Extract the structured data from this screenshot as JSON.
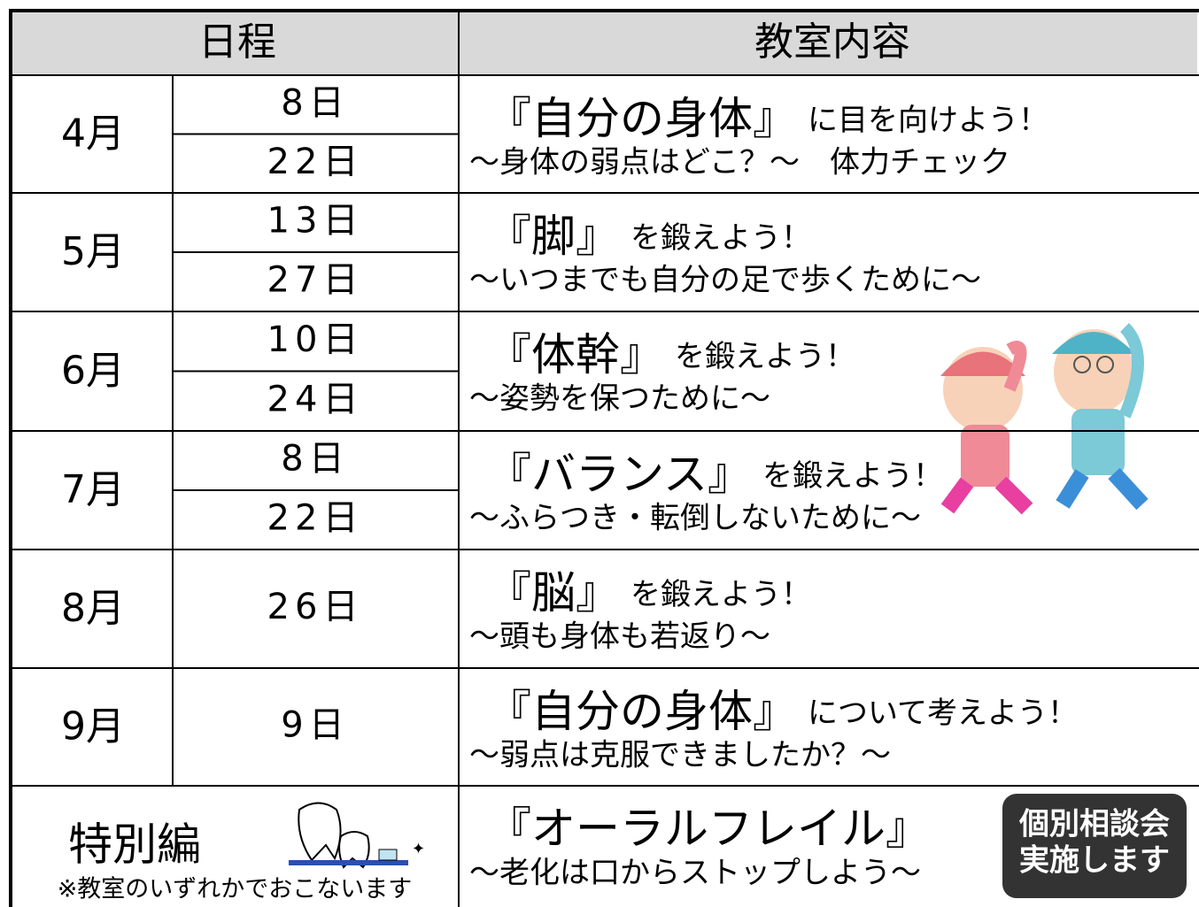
{
  "header": {
    "schedule": "日程",
    "content": "教室内容"
  },
  "rows": [
    {
      "month": "4月",
      "days": [
        "8日",
        "22日"
      ],
      "title": "『自分の身体』",
      "title_suffix": "に目を向けよう！",
      "subtitle": "～身体の弱点はどこ？～　体力チェック"
    },
    {
      "month": "5月",
      "days": [
        "13日",
        "27日"
      ],
      "title": "『脚』",
      "title_suffix": "を鍛えよう！",
      "subtitle": "～いつまでも自分の足で歩くために～"
    },
    {
      "month": "6月",
      "days": [
        "10日",
        "24日"
      ],
      "title": "『体幹』",
      "title_suffix": "を鍛えよう！",
      "subtitle": "～姿勢を保つために～"
    },
    {
      "month": "7月",
      "days": [
        "8日",
        "22日"
      ],
      "title": "『バランス』",
      "title_suffix": "を鍛えよう！",
      "subtitle": "～ふらつき・転倒しないために～"
    },
    {
      "month": "8月",
      "days": [
        "26日"
      ],
      "title": "『脳』",
      "title_suffix": "を鍛えよう！",
      "subtitle": "～頭も身体も若返り～"
    },
    {
      "month": "9月",
      "days": [
        "9日"
      ],
      "title": "『自分の身体』",
      "title_suffix": "について考えよう！",
      "subtitle": "～弱点は克服できましたか？～"
    }
  ],
  "special": {
    "label": "特別編",
    "note": "※教室のいずれかでおこないます",
    "title": "『オーラルフレイル』",
    "subtitle": "～老化は口からストップしよう～",
    "badge": [
      "個別相談会",
      "実施します"
    ]
  }
}
